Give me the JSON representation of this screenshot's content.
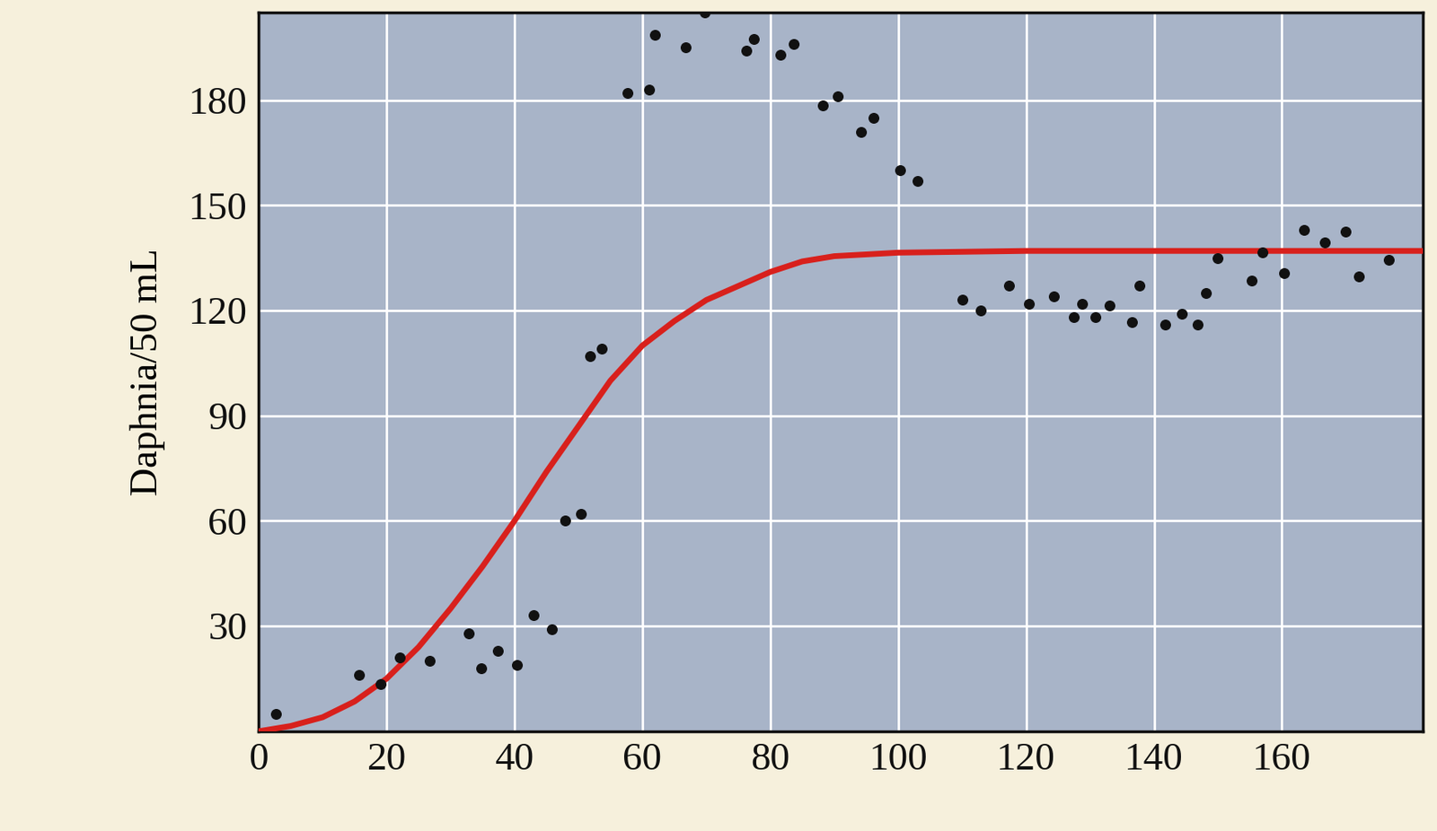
{
  "chart_data": {
    "type": "scatter",
    "y_label": "Daphnia/50 mL",
    "xlim": [
      0,
      182
    ],
    "ylim": [
      0,
      205
    ],
    "xticks": [
      0,
      20,
      40,
      60,
      80,
      100,
      120,
      140,
      160
    ],
    "yticks": [
      30,
      60,
      90,
      120,
      150,
      180
    ],
    "grid": true,
    "series": [
      {
        "type": "scatter",
        "color": "#111111",
        "marker": "o",
        "x": [
          2.7,
          15.7,
          19.1,
          22.1,
          26.8,
          32.9,
          34.8,
          37.4,
          40.4,
          43.0,
          45.8,
          47.9,
          50.4,
          51.8,
          53.6,
          57.7,
          61.1,
          62.0,
          66.8,
          69.8,
          76.2,
          77.4,
          81.6,
          83.7,
          88.2,
          90.6,
          94.2,
          96.2,
          100.3,
          103.0,
          110.0,
          112.9,
          117.3,
          120.4,
          124.3,
          127.5,
          128.7,
          130.8,
          133.0,
          136.6,
          137.7,
          141.8,
          144.3,
          146.8,
          148.1,
          150.0,
          155.3,
          156.9,
          160.4,
          163.4,
          166.7,
          170.0,
          172.0,
          176.7
        ],
        "values": [
          4.9,
          16,
          13.5,
          21,
          20,
          28,
          18,
          23,
          19,
          33,
          29,
          60,
          62,
          107,
          109,
          182,
          183,
          198.5,
          195,
          205,
          194,
          197.5,
          193,
          196,
          178.5,
          181,
          171,
          175,
          160,
          157,
          123,
          120,
          127,
          122,
          124,
          118,
          122,
          118,
          121.5,
          116.6,
          127,
          116,
          119,
          116,
          125,
          135,
          128.5,
          136.6,
          130.6,
          143,
          139.5,
          142.6,
          129.6,
          134.5
        ]
      },
      {
        "type": "line",
        "color": "#d8201c",
        "line_style": "solid",
        "x": [
          0,
          5,
          10,
          15,
          20,
          25,
          30,
          35,
          40,
          45,
          50,
          55,
          60,
          65,
          70,
          75,
          80,
          85,
          90,
          100,
          120,
          140,
          160,
          182
        ],
        "values": [
          0,
          1.5,
          4,
          8.5,
          15,
          24,
          35,
          47,
          60,
          74,
          87,
          100,
          110,
          117,
          123,
          127,
          131,
          134,
          135.5,
          136.5,
          137,
          137,
          137,
          137
        ]
      }
    ]
  }
}
